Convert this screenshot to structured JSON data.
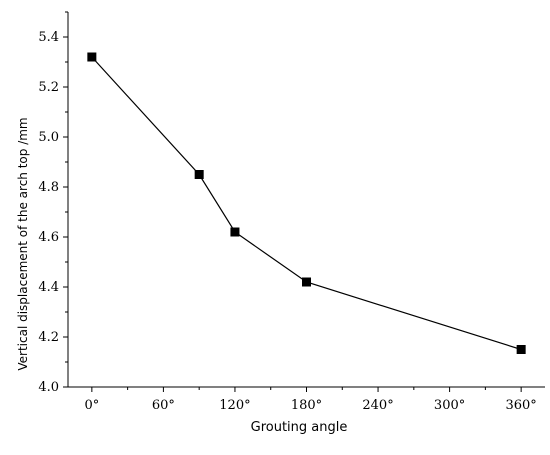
{
  "chart_data": {
    "type": "line",
    "title": "",
    "xlabel": "Grouting angle",
    "ylabel": "Vertical displacement of the arch top /mm",
    "xlim": [
      -20,
      380
    ],
    "ylim": [
      4.0,
      5.5
    ],
    "x_ticks": [
      0,
      60,
      120,
      180,
      240,
      300,
      360
    ],
    "x_tick_labels": [
      "0°",
      "60°",
      "120°",
      "180°",
      "240°",
      "300°",
      "360°"
    ],
    "y_ticks": [
      4.0,
      4.2,
      4.4,
      4.6,
      4.8,
      5.0,
      5.2,
      5.4
    ],
    "y_tick_labels": [
      "4.0",
      "4.2",
      "4.4",
      "4.6",
      "4.8",
      "5.0",
      "5.2",
      "5.4"
    ],
    "grid": false,
    "legend": "none",
    "marker": "square",
    "series": [
      {
        "x": [
          0,
          90,
          120,
          180,
          360
        ],
        "y": [
          5.32,
          4.85,
          4.62,
          4.42,
          4.15
        ]
      }
    ],
    "colors": {
      "line": "#000000",
      "marker": "#000000",
      "axis": "#000000"
    }
  }
}
